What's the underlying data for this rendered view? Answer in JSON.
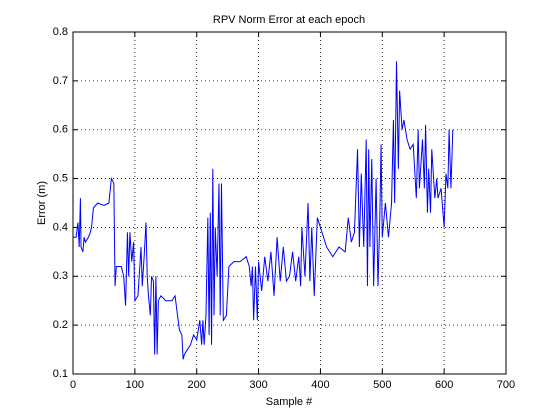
{
  "chart_data": {
    "type": "line",
    "title": "RPV Norm Error at each epoch",
    "xlabel": "Sample #",
    "ylabel": "Error (m)",
    "xlim": [
      0,
      700
    ],
    "xticks": [
      0,
      100,
      200,
      300,
      400,
      500,
      600,
      700
    ],
    "ylim": [
      0.1,
      0.8
    ],
    "yticks": [
      0.1,
      0.2,
      0.3,
      0.4,
      0.5,
      0.6,
      0.7,
      0.8
    ],
    "grid": true,
    "series": [
      {
        "color": "#0000ff",
        "x": [
          1,
          5,
          8,
          10,
          12,
          13,
          16,
          18,
          20,
          25,
          28,
          30,
          33,
          40,
          50,
          58,
          62,
          66,
          68,
          70,
          78,
          82,
          85,
          88,
          90,
          92,
          95,
          98,
          100,
          105,
          110,
          112,
          115,
          118,
          120,
          122,
          125,
          127,
          130,
          132,
          134,
          136,
          138,
          142,
          150,
          160,
          165,
          172,
          176,
          178,
          180,
          185,
          190,
          195,
          200,
          205,
          208,
          210,
          212,
          215,
          218,
          220,
          222,
          224,
          226,
          228,
          230,
          233,
          236,
          238,
          240,
          243,
          248,
          252,
          260,
          270,
          280,
          285,
          288,
          290,
          292,
          295,
          298,
          300,
          305,
          310,
          315,
          320,
          325,
          330,
          335,
          340,
          345,
          350,
          355,
          360,
          365,
          368,
          370,
          375,
          380,
          383,
          386,
          390,
          395,
          400,
          410,
          420,
          430,
          440,
          445,
          450,
          455,
          460,
          463,
          466,
          470,
          474,
          476,
          478,
          480,
          483,
          486,
          490,
          493,
          496,
          498,
          500,
          505,
          510,
          515,
          518,
          520,
          523,
          526,
          528,
          532,
          535,
          540,
          545,
          550,
          555,
          558,
          560,
          565,
          568,
          570,
          573,
          575,
          578,
          580,
          585,
          588,
          590,
          595,
          600,
          603,
          606,
          608,
          611,
          614
        ],
        "values": [
          0.38,
          0.38,
          0.41,
          0.36,
          0.46,
          0.36,
          0.35,
          0.38,
          0.37,
          0.38,
          0.39,
          0.4,
          0.44,
          0.45,
          0.445,
          0.45,
          0.5,
          0.49,
          0.28,
          0.32,
          0.32,
          0.3,
          0.24,
          0.39,
          0.3,
          0.39,
          0.33,
          0.37,
          0.25,
          0.26,
          0.36,
          0.28,
          0.34,
          0.41,
          0.3,
          0.26,
          0.22,
          0.3,
          0.29,
          0.14,
          0.3,
          0.14,
          0.25,
          0.26,
          0.25,
          0.25,
          0.26,
          0.19,
          0.18,
          0.13,
          0.14,
          0.15,
          0.16,
          0.18,
          0.17,
          0.21,
          0.16,
          0.21,
          0.16,
          0.22,
          0.42,
          0.18,
          0.43,
          0.16,
          0.52,
          0.22,
          0.4,
          0.3,
          0.49,
          0.22,
          0.49,
          0.21,
          0.22,
          0.32,
          0.33,
          0.33,
          0.34,
          0.32,
          0.28,
          0.32,
          0.21,
          0.32,
          0.21,
          0.33,
          0.27,
          0.34,
          0.29,
          0.35,
          0.26,
          0.38,
          0.29,
          0.36,
          0.29,
          0.3,
          0.35,
          0.29,
          0.34,
          0.28,
          0.4,
          0.3,
          0.45,
          0.29,
          0.4,
          0.26,
          0.42,
          0.4,
          0.36,
          0.34,
          0.36,
          0.35,
          0.42,
          0.37,
          0.39,
          0.56,
          0.36,
          0.51,
          0.36,
          0.58,
          0.28,
          0.56,
          0.36,
          0.54,
          0.28,
          0.5,
          0.28,
          0.42,
          0.57,
          0.38,
          0.45,
          0.38,
          0.45,
          0.62,
          0.45,
          0.74,
          0.52,
          0.68,
          0.6,
          0.62,
          0.58,
          0.56,
          0.57,
          0.46,
          0.6,
          0.48,
          0.58,
          0.48,
          0.61,
          0.43,
          0.52,
          0.43,
          0.56,
          0.46,
          0.5,
          0.46,
          0.48,
          0.4,
          0.51,
          0.48,
          0.6,
          0.48,
          0.6
        ]
      }
    ]
  }
}
